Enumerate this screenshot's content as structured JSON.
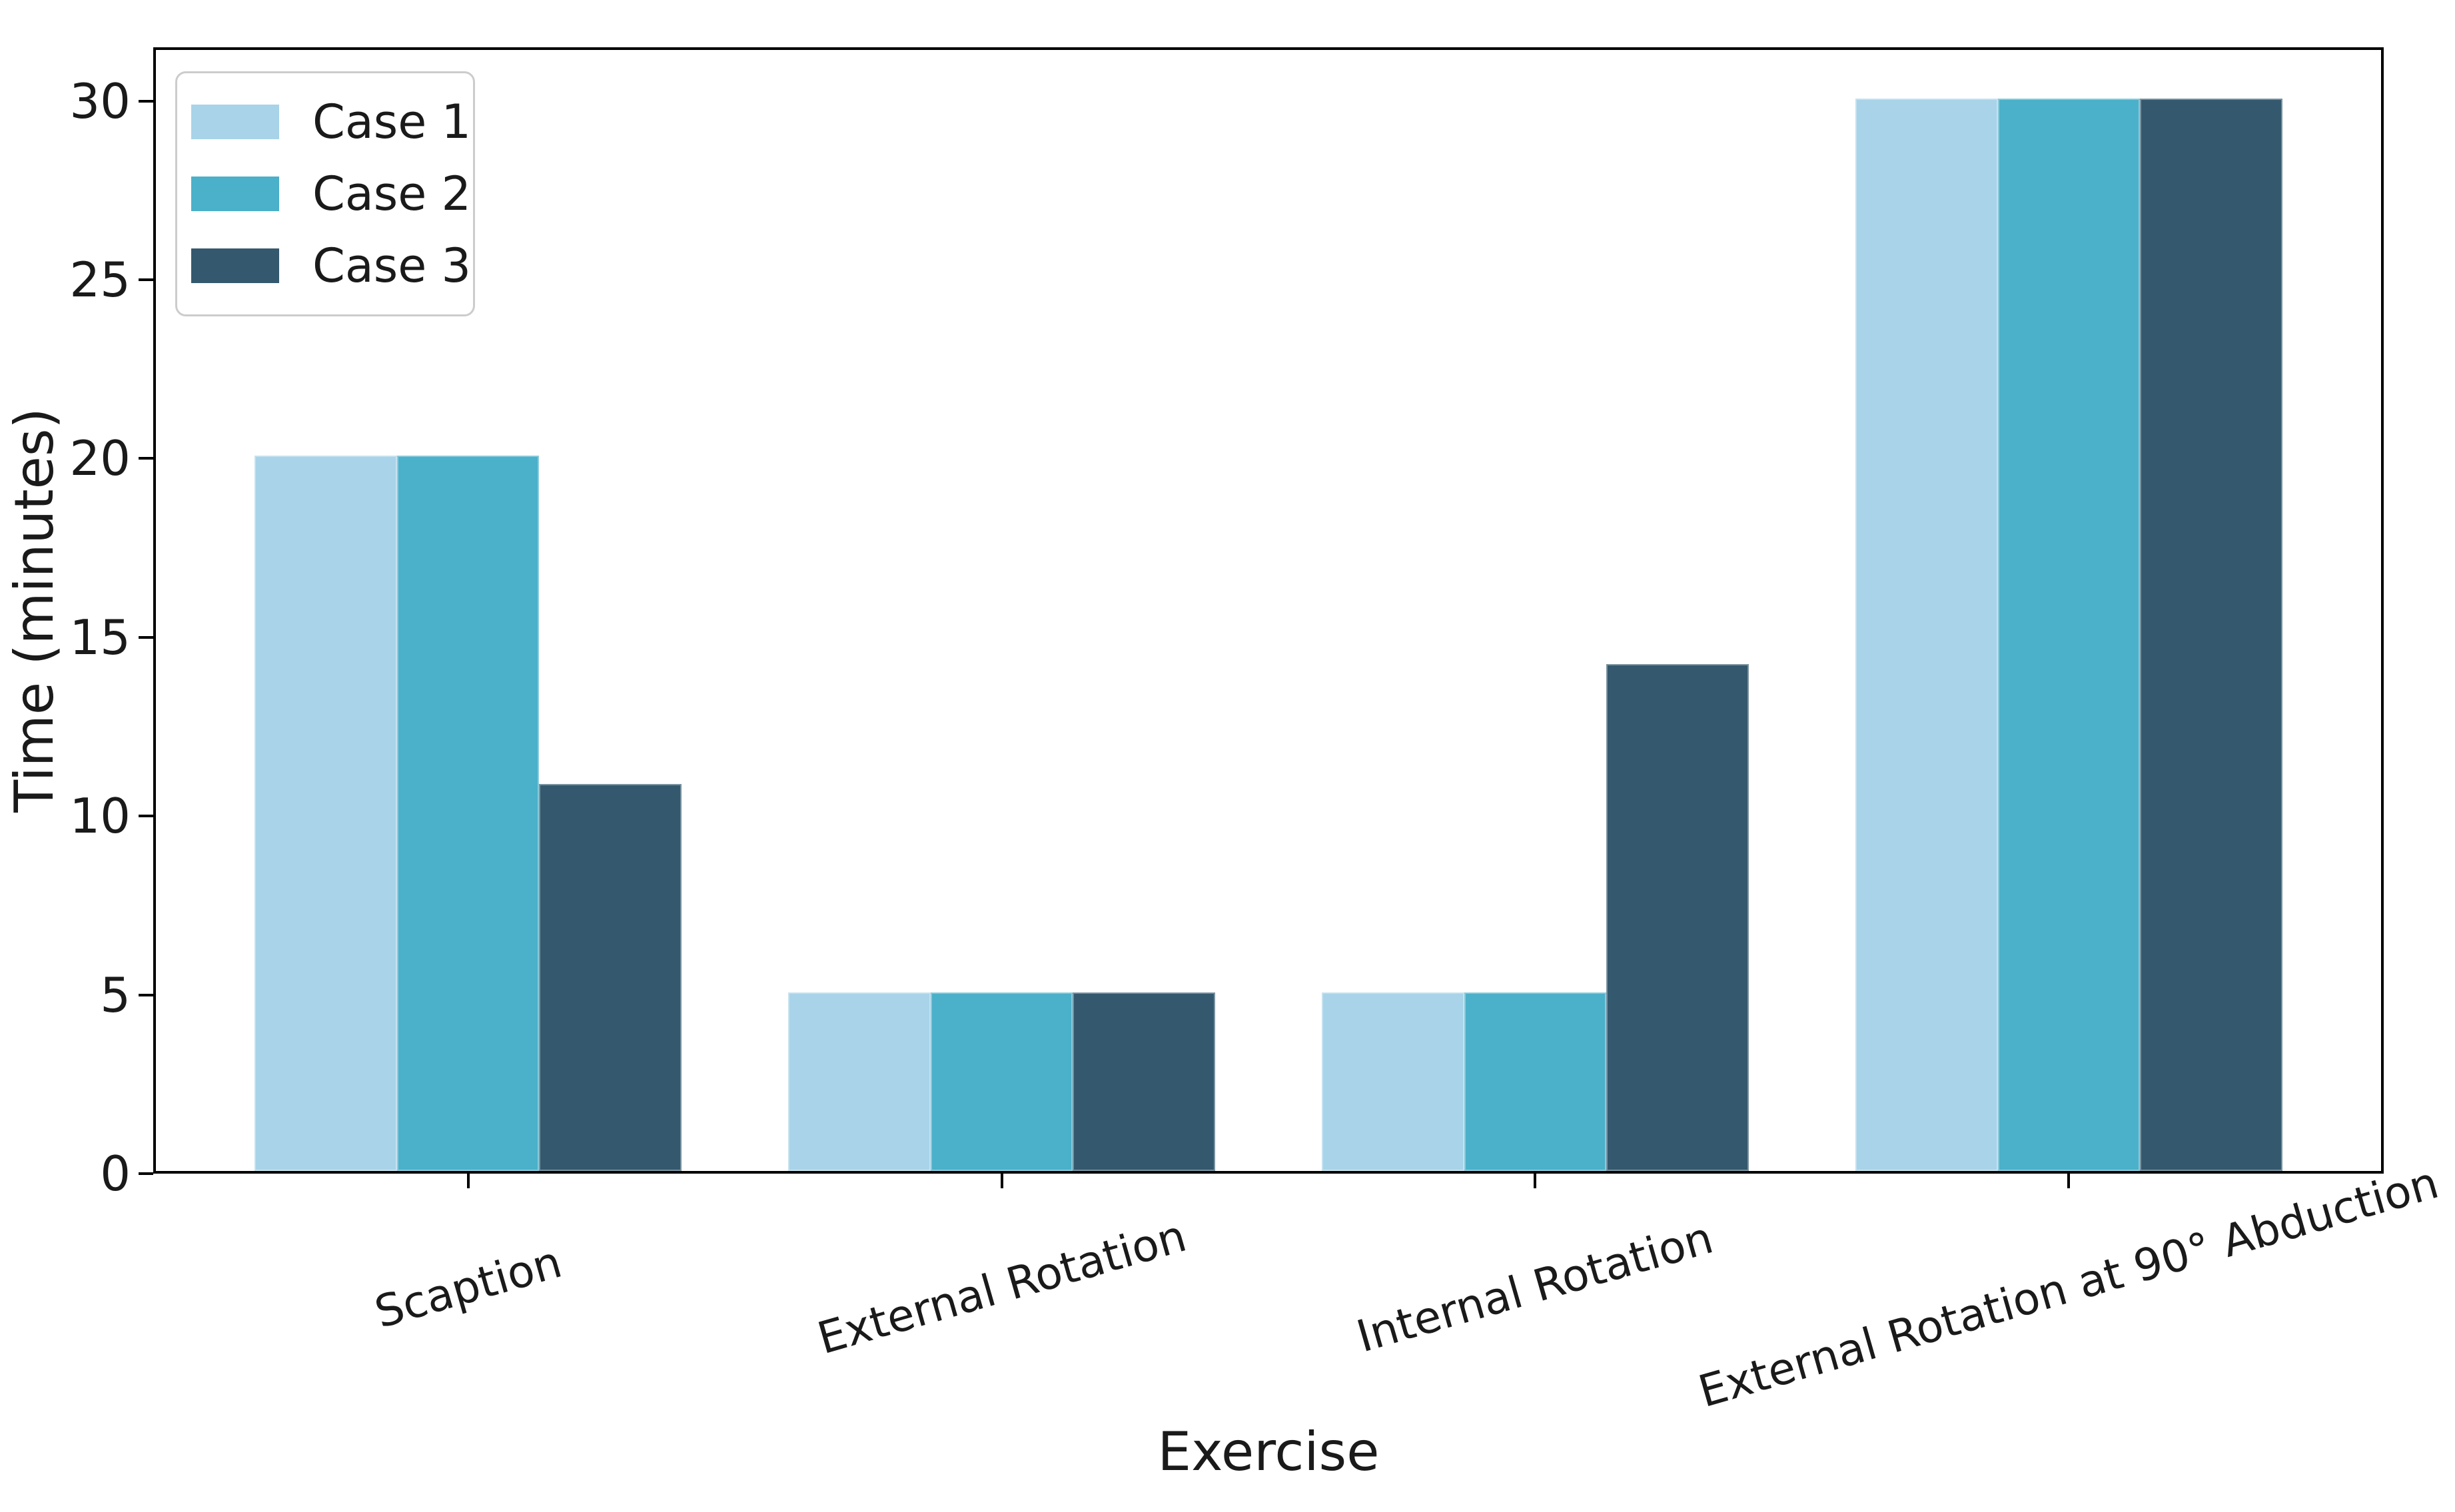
{
  "figure": {
    "background_color": "#ffffff",
    "text_color": "#1a1a1a",
    "spine_color": "#000000",
    "legend_border_color": "#cccccc"
  },
  "chart_data": {
    "type": "bar",
    "title": "",
    "xlabel": "Exercise",
    "ylabel": "Time (minutes)",
    "categories": [
      "Scaption",
      "External Rotation",
      "Internal Rotation",
      "External Rotation at 90° Abduction"
    ],
    "series": [
      {
        "name": "Case 1",
        "color": "#a8d3e8",
        "values": [
          20,
          5,
          5,
          30
        ]
      },
      {
        "name": "Case 2",
        "color": "#4bb0c9",
        "values": [
          20,
          5,
          5,
          30
        ]
      },
      {
        "name": "Case 3",
        "color": "#34596e",
        "values": [
          10.83,
          5,
          14.17,
          30
        ]
      }
    ],
    "ylim": [
      0,
      31.5
    ],
    "yticks": [
      0,
      5,
      10,
      15,
      20,
      25,
      30
    ],
    "grid": false,
    "legend_position": "upper left",
    "legend_labels": [
      "Case 1",
      "Case 2",
      "Case 3"
    ],
    "xtick_rotation_deg": 16
  }
}
